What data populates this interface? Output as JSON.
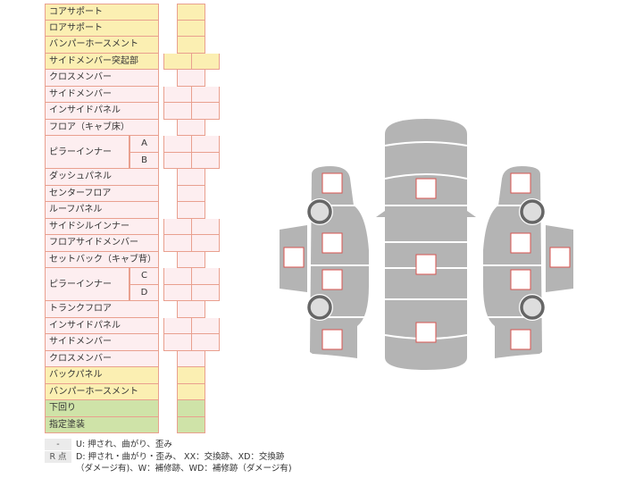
{
  "rows": [
    {
      "label": "コアサポート",
      "color": "y",
      "cells": "single"
    },
    {
      "label": "ロアサポート",
      "color": "y",
      "cells": "single"
    },
    {
      "label": "バンパーホースメント",
      "color": "y",
      "cells": "single"
    },
    {
      "label": "サイドメンバー突起部",
      "color": "y",
      "cells": "double"
    },
    {
      "label": "クロスメンバー",
      "color": "p",
      "cells": "single"
    },
    {
      "label": "サイドメンバー",
      "color": "p",
      "cells": "double"
    },
    {
      "label": "インサイドパネル",
      "color": "p",
      "cells": "double"
    },
    {
      "label": "フロア（キャブ床）",
      "color": "p",
      "cells": "single"
    },
    {
      "label": "ピラーインナー",
      "sub": "A",
      "color": "p",
      "cells": "double"
    },
    {
      "label": "",
      "sub": "B",
      "color": "p",
      "cells": "double"
    },
    {
      "label": "ダッシュパネル",
      "color": "p",
      "cells": "single"
    },
    {
      "label": "センターフロア",
      "color": "p",
      "cells": "single"
    },
    {
      "label": "ルーフパネル",
      "color": "p",
      "cells": "single"
    },
    {
      "label": "サイドシルインナー",
      "color": "p",
      "cells": "double"
    },
    {
      "label": "フロアサイドメンバー",
      "color": "p",
      "cells": "double"
    },
    {
      "label": "セットバック（キャブ背）",
      "color": "p",
      "cells": "single"
    },
    {
      "label": "ピラーインナー",
      "sub": "C",
      "color": "p",
      "cells": "double"
    },
    {
      "label": "",
      "sub": "D",
      "color": "p",
      "cells": "double"
    },
    {
      "label": "トランクフロア",
      "color": "p",
      "cells": "single"
    },
    {
      "label": "インサイドパネル",
      "color": "p",
      "cells": "double"
    },
    {
      "label": "サイドメンバー",
      "color": "p",
      "cells": "double"
    },
    {
      "label": "クロスメンバー",
      "color": "p",
      "cells": "single"
    },
    {
      "label": "バックパネル",
      "color": "y",
      "cells": "single"
    },
    {
      "label": "バンパーホースメント",
      "color": "y",
      "cells": "single"
    },
    {
      "label": "下回り",
      "color": "g",
      "cells": "single"
    },
    {
      "label": "指定塗装",
      "color": "g",
      "cells": "single"
    }
  ],
  "legend": [
    {
      "key": "-",
      "text": "U: 押され、曲がり、歪み"
    },
    {
      "key": "R 点",
      "text": "D: 押され・曲がり・歪み、 XX：交換跡、XD：交換跡"
    },
    {
      "key": "",
      "text": "（ダメージ有)、W：補修跡、WD：補修跡（ダメージ有)"
    }
  ],
  "colors": {
    "yellow": "#fbefb2",
    "pink": "#fdeef0",
    "green": "#cfe3a8",
    "border": "#e9a08f",
    "car": "#b4b4b4",
    "marker": "#d9534f"
  }
}
